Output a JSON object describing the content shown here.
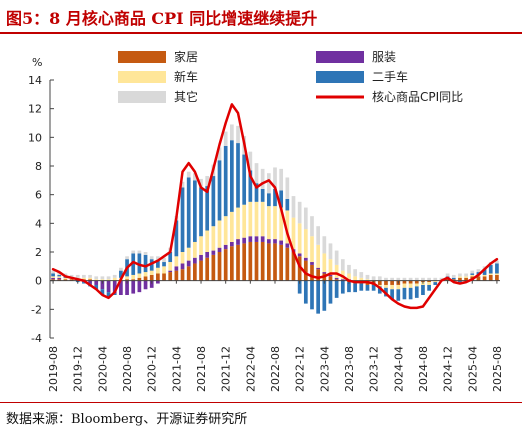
{
  "header": {
    "title": "图5：8 月核心商品 CPI 同比增速继续提升"
  },
  "footer": {
    "source": "数据来源：Bloomberg、开源证券研究所"
  },
  "colors": {
    "household": "#c55a11",
    "car_new": "#ffe699",
    "other": "#d9d9d9",
    "clothing": "#7030a0",
    "used_car": "#2e75b6",
    "core_cpi": "#e00000"
  },
  "chart_data": {
    "type": "bar",
    "stacked": true,
    "ylabel": "%",
    "ylim": [
      -4,
      14
    ],
    "yticks": [
      -4,
      -2,
      0,
      2,
      4,
      6,
      8,
      10,
      12,
      14
    ],
    "grid": false,
    "legend_position": "top",
    "x_tick_labels": [
      "2019-08",
      "2019-12",
      "2020-04",
      "2020-08",
      "2020-12",
      "2021-04",
      "2021-08",
      "2021-12",
      "2022-04",
      "2022-08",
      "2022-12",
      "2023-04",
      "2023-08",
      "2023-12",
      "2024-04",
      "2024-08",
      "2024-12",
      "2025-04",
      "2025-08"
    ],
    "x": [
      "2019-08",
      "2019-09",
      "2019-10",
      "2019-11",
      "2019-12",
      "2020-01",
      "2020-02",
      "2020-03",
      "2020-04",
      "2020-05",
      "2020-06",
      "2020-07",
      "2020-08",
      "2020-09",
      "2020-10",
      "2020-11",
      "2020-12",
      "2021-01",
      "2021-02",
      "2021-03",
      "2021-04",
      "2021-05",
      "2021-06",
      "2021-07",
      "2021-08",
      "2021-09",
      "2021-10",
      "2021-11",
      "2021-12",
      "2022-01",
      "2022-02",
      "2022-03",
      "2022-04",
      "2022-05",
      "2022-06",
      "2022-07",
      "2022-08",
      "2022-09",
      "2022-10",
      "2022-11",
      "2022-12",
      "2023-01",
      "2023-02",
      "2023-03",
      "2023-04",
      "2023-05",
      "2023-06",
      "2023-07",
      "2023-08",
      "2023-09",
      "2023-10",
      "2023-11",
      "2023-12",
      "2024-01",
      "2024-02",
      "2024-03",
      "2024-04",
      "2024-05",
      "2024-06",
      "2024-07",
      "2024-08",
      "2024-09",
      "2024-10",
      "2024-11",
      "2024-12",
      "2025-01",
      "2025-02",
      "2025-03",
      "2025-04",
      "2025-05",
      "2025-06",
      "2025-07",
      "2025-08"
    ],
    "series": [
      {
        "name": "家居",
        "key": "household",
        "values": [
          0.1,
          0.1,
          0.1,
          0.1,
          0.1,
          0.1,
          0.1,
          0.0,
          0.0,
          0.0,
          0.0,
          0.0,
          0.1,
          0.1,
          0.2,
          0.3,
          0.4,
          0.5,
          0.5,
          0.6,
          0.7,
          0.8,
          1.0,
          1.2,
          1.4,
          1.6,
          1.8,
          2.0,
          2.2,
          2.4,
          2.5,
          2.6,
          2.7,
          2.7,
          2.7,
          2.6,
          2.6,
          2.5,
          2.3,
          2.0,
          1.7,
          1.4,
          1.1,
          0.8,
          0.5,
          0.3,
          0.1,
          0.0,
          -0.1,
          -0.2,
          -0.2,
          -0.3,
          -0.3,
          -0.3,
          -0.3,
          -0.3,
          -0.3,
          -0.2,
          -0.2,
          -0.2,
          -0.1,
          -0.1,
          0.0,
          0.0,
          0.1,
          0.1,
          0.2,
          0.2,
          0.3,
          0.3,
          0.3,
          0.4,
          0.4
        ]
      },
      {
        "name": "服装",
        "key": "clothing",
        "values": [
          0.1,
          0.1,
          0.0,
          0.0,
          0.0,
          -0.1,
          -0.2,
          -0.3,
          -0.6,
          -0.8,
          -0.9,
          -1.0,
          -1.0,
          -0.9,
          -0.8,
          -0.6,
          -0.5,
          -0.2,
          0.0,
          0.1,
          0.3,
          0.4,
          0.4,
          0.4,
          0.4,
          0.4,
          0.3,
          0.3,
          0.3,
          0.3,
          0.4,
          0.4,
          0.4,
          0.4,
          0.4,
          0.3,
          0.3,
          0.3,
          0.3,
          0.2,
          0.2,
          0.2,
          0.2,
          0.1,
          0.1,
          0.1,
          0.1,
          0.1,
          0.1,
          0.0,
          0.0,
          0.0,
          0.0,
          0.0,
          0.0,
          0.0,
          0.0,
          0.0,
          0.0,
          0.0,
          0.0,
          0.0,
          0.0,
          0.0,
          0.0,
          0.0,
          0.0,
          0.0,
          0.0,
          0.0,
          0.0,
          0.0,
          0.0
        ]
      },
      {
        "name": "新车",
        "key": "car_new",
        "values": [
          0.1,
          0.1,
          0.1,
          0.1,
          0.1,
          0.1,
          0.1,
          0.1,
          0.1,
          0.1,
          0.2,
          0.2,
          0.2,
          0.3,
          0.3,
          0.3,
          0.3,
          0.4,
          0.5,
          0.6,
          0.7,
          0.8,
          0.9,
          1.1,
          1.3,
          1.5,
          1.7,
          1.9,
          2.0,
          2.1,
          2.2,
          2.3,
          2.4,
          2.4,
          2.4,
          2.3,
          2.3,
          2.3,
          2.3,
          2.2,
          2.1,
          2.0,
          1.8,
          1.6,
          1.3,
          1.1,
          0.9,
          0.6,
          0.4,
          0.3,
          0.2,
          0.1,
          0.0,
          -0.1,
          -0.2,
          -0.3,
          -0.3,
          -0.3,
          -0.3,
          -0.2,
          -0.2,
          -0.2,
          -0.1,
          0.0,
          0.0,
          0.0,
          0.1,
          0.1,
          0.1,
          0.1,
          0.1,
          0.1,
          0.1
        ]
      },
      {
        "name": "二手车",
        "key": "used_car",
        "values": [
          0.2,
          0.1,
          0.1,
          0.0,
          -0.1,
          -0.1,
          -0.2,
          -0.3,
          -0.4,
          -0.3,
          -0.1,
          0.5,
          1.2,
          1.5,
          1.4,
          1.2,
          0.8,
          0.5,
          0.3,
          0.7,
          2.5,
          4.5,
          4.9,
          4.3,
          3.4,
          3.1,
          3.5,
          4.2,
          4.9,
          5.0,
          4.5,
          3.5,
          2.2,
          1.3,
          0.9,
          0.9,
          1.2,
          1.2,
          0.8,
          0.0,
          -0.9,
          -1.6,
          -2.0,
          -2.3,
          -2.1,
          -1.6,
          -1.2,
          -0.9,
          -0.7,
          -0.6,
          -0.5,
          -0.4,
          -0.4,
          -0.5,
          -0.6,
          -0.7,
          -0.8,
          -0.8,
          -0.8,
          -0.8,
          -0.7,
          -0.4,
          -0.2,
          0.0,
          0.2,
          0.1,
          -0.1,
          0.0,
          0.1,
          0.2,
          0.4,
          0.6,
          0.7
        ]
      },
      {
        "name": "其它",
        "key": "other",
        "values": [
          0.2,
          0.2,
          0.2,
          0.2,
          0.2,
          0.2,
          0.2,
          0.2,
          0.2,
          0.2,
          0.2,
          0.2,
          0.2,
          0.2,
          0.2,
          0.2,
          0.2,
          0.3,
          0.3,
          0.3,
          0.3,
          0.4,
          0.4,
          0.5,
          0.6,
          0.7,
          0.8,
          0.9,
          1.0,
          1.1,
          1.2,
          1.3,
          1.3,
          1.4,
          1.4,
          1.4,
          1.5,
          1.5,
          1.5,
          1.5,
          1.5,
          1.5,
          1.4,
          1.3,
          1.2,
          1.1,
          1.0,
          0.8,
          0.6,
          0.5,
          0.4,
          0.3,
          0.3,
          0.3,
          0.2,
          0.2,
          0.2,
          0.2,
          0.2,
          0.2,
          0.2,
          0.2,
          0.2,
          0.2,
          0.2,
          0.2,
          0.2,
          0.2,
          0.2,
          0.2,
          0.2,
          0.2,
          0.2
        ]
      },
      {
        "name": "核心商品CPI同比",
        "key": "core_cpi",
        "type": "line",
        "values": [
          0.8,
          0.6,
          0.3,
          0.2,
          0.1,
          0.0,
          -0.3,
          -0.6,
          -1.0,
          -1.2,
          -0.8,
          0.1,
          0.9,
          1.3,
          1.1,
          1.0,
          1.2,
          1.4,
          1.7,
          2.0,
          4.4,
          7.6,
          8.2,
          7.6,
          6.5,
          6.2,
          7.8,
          9.5,
          11.0,
          12.3,
          11.7,
          9.6,
          7.3,
          6.5,
          6.8,
          7.0,
          6.5,
          5.0,
          3.3,
          2.0,
          1.0,
          0.5,
          0.3,
          0.2,
          0.3,
          0.5,
          0.5,
          0.3,
          0.0,
          -0.1,
          -0.1,
          -0.1,
          -0.2,
          -0.5,
          -0.9,
          -1.3,
          -1.6,
          -1.8,
          -1.9,
          -1.9,
          -1.8,
          -1.2,
          -0.6,
          0.0,
          0.2,
          -0.1,
          -0.2,
          -0.1,
          0.1,
          0.4,
          0.8,
          1.2,
          1.5
        ]
      }
    ]
  }
}
